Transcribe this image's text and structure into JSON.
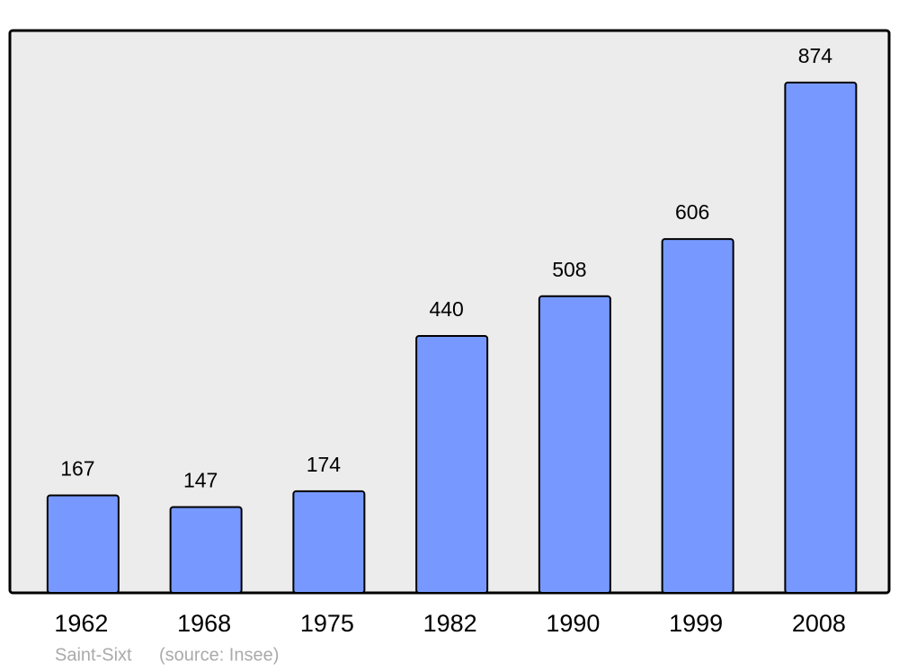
{
  "chart_data": {
    "type": "bar",
    "categories": [
      "1962",
      "1968",
      "1975",
      "1982",
      "1990",
      "1999",
      "2008"
    ],
    "values": [
      167,
      147,
      174,
      440,
      508,
      606,
      874
    ],
    "color": "#7799ff",
    "ylim": [
      0,
      963
    ],
    "place": "Saint-Sixt",
    "source": "(source: Insee)"
  }
}
